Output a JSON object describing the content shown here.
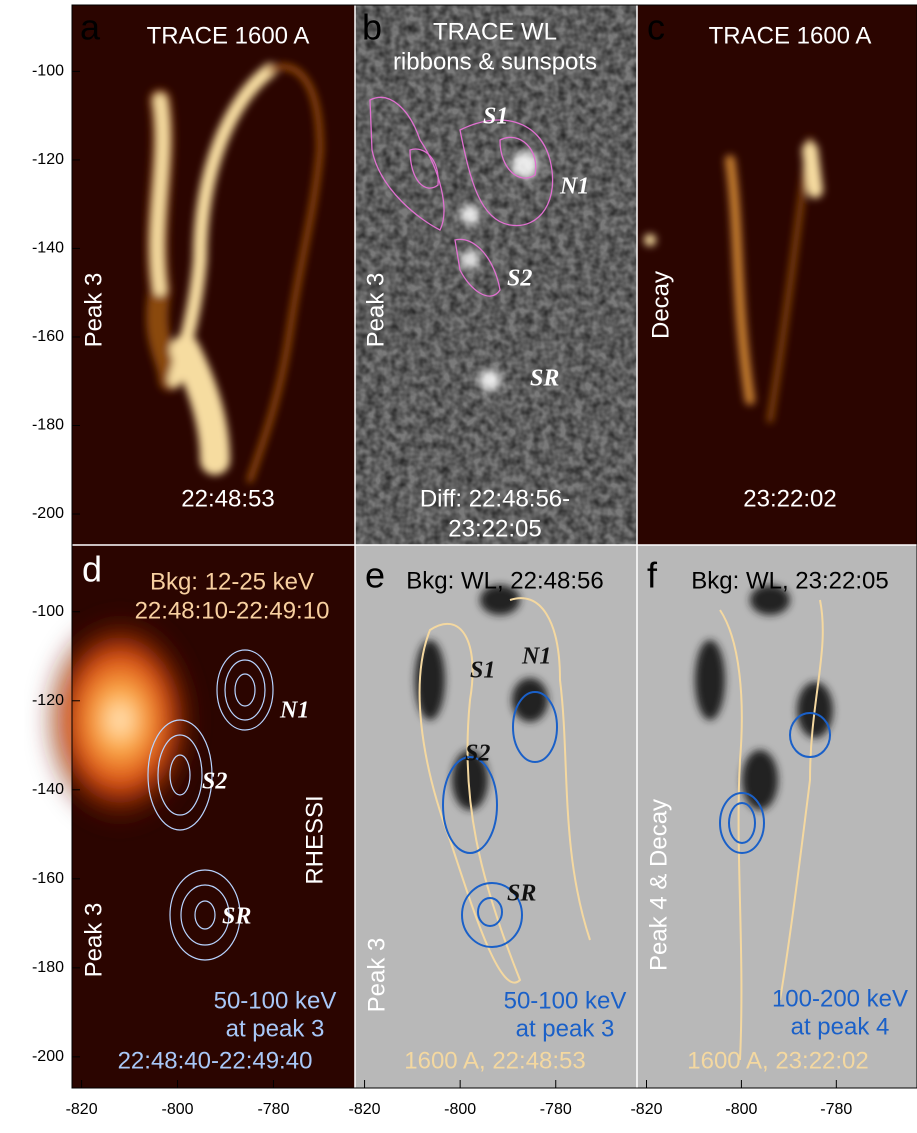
{
  "axes": {
    "xlim": [
      -822,
      -763
    ],
    "xticks": [
      -820,
      -800,
      -780
    ],
    "ylim": [
      -85,
      -207
    ],
    "yticks": [
      -100,
      -120,
      -140,
      -160,
      -180,
      -200
    ]
  },
  "panels": [
    {
      "letter": "a",
      "title": [
        "TRACE 1600 A"
      ],
      "side": "Peak 3",
      "notes": [
        "22:48:53"
      ]
    },
    {
      "letter": "b",
      "title": [
        "TRACE WL",
        "ribbons & sunspots"
      ],
      "side": "Peak 3",
      "features": [
        "S1",
        "N1",
        "S2",
        "SR"
      ],
      "notes": [
        "Diff: 22:48:56-",
        "23:22:05"
      ]
    },
    {
      "letter": "c",
      "title": [
        "TRACE 1600 A"
      ],
      "side": "Decay",
      "notes": [
        "23:22:02"
      ]
    },
    {
      "letter": "d",
      "title": [
        "Bkg: 12-25 keV",
        "22:48:10-22:49:10"
      ],
      "side": "Peak 3",
      "features": [
        "N1",
        "S2",
        "SR"
      ],
      "instrument": "RHESSI",
      "notes": [
        "50-100 keV",
        "at peak 3",
        "22:48:40-22:49:40"
      ]
    },
    {
      "letter": "e",
      "title": [
        "Bkg: WL, 22:48:56"
      ],
      "side": "Peak 3",
      "features": [
        "S1",
        "N1",
        "S2",
        "SR"
      ],
      "notes": [
        "50-100 keV",
        "at peak 3",
        "1600 A, 22:48:53"
      ]
    },
    {
      "letter": "f",
      "title": [
        "Bkg: WL, 23:22:05"
      ],
      "side": "Peak 4 & Decay",
      "notes": [
        "100-200 keV",
        "at peak 4",
        "1600 A, 23:22:02"
      ]
    }
  ]
}
